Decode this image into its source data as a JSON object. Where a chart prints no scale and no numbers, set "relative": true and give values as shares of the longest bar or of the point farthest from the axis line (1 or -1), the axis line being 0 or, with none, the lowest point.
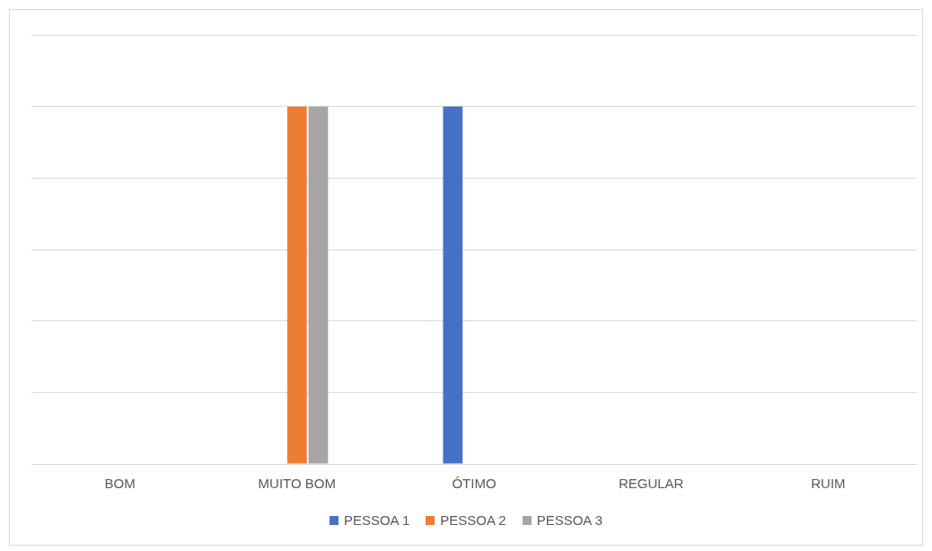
{
  "chart_data": {
    "type": "bar",
    "categories": [
      "BOM",
      "MUITO BOM",
      "ÓTIMO",
      "REGULAR",
      "RUIM"
    ],
    "relative": true,
    "grid": "y",
    "legend": "bottom",
    "series": [
      {
        "name": "PESSOA 1",
        "color": "#4472c4",
        "values": [
          null,
          null,
          1,
          null,
          null
        ]
      },
      {
        "name": "PESSOA 2",
        "color": "#ed7d31",
        "values": [
          null,
          1,
          null,
          null,
          null
        ]
      },
      {
        "name": "PESSOA 3",
        "color": "#a5a5a5",
        "values": [
          null,
          1,
          null,
          null,
          null
        ]
      }
    ]
  }
}
